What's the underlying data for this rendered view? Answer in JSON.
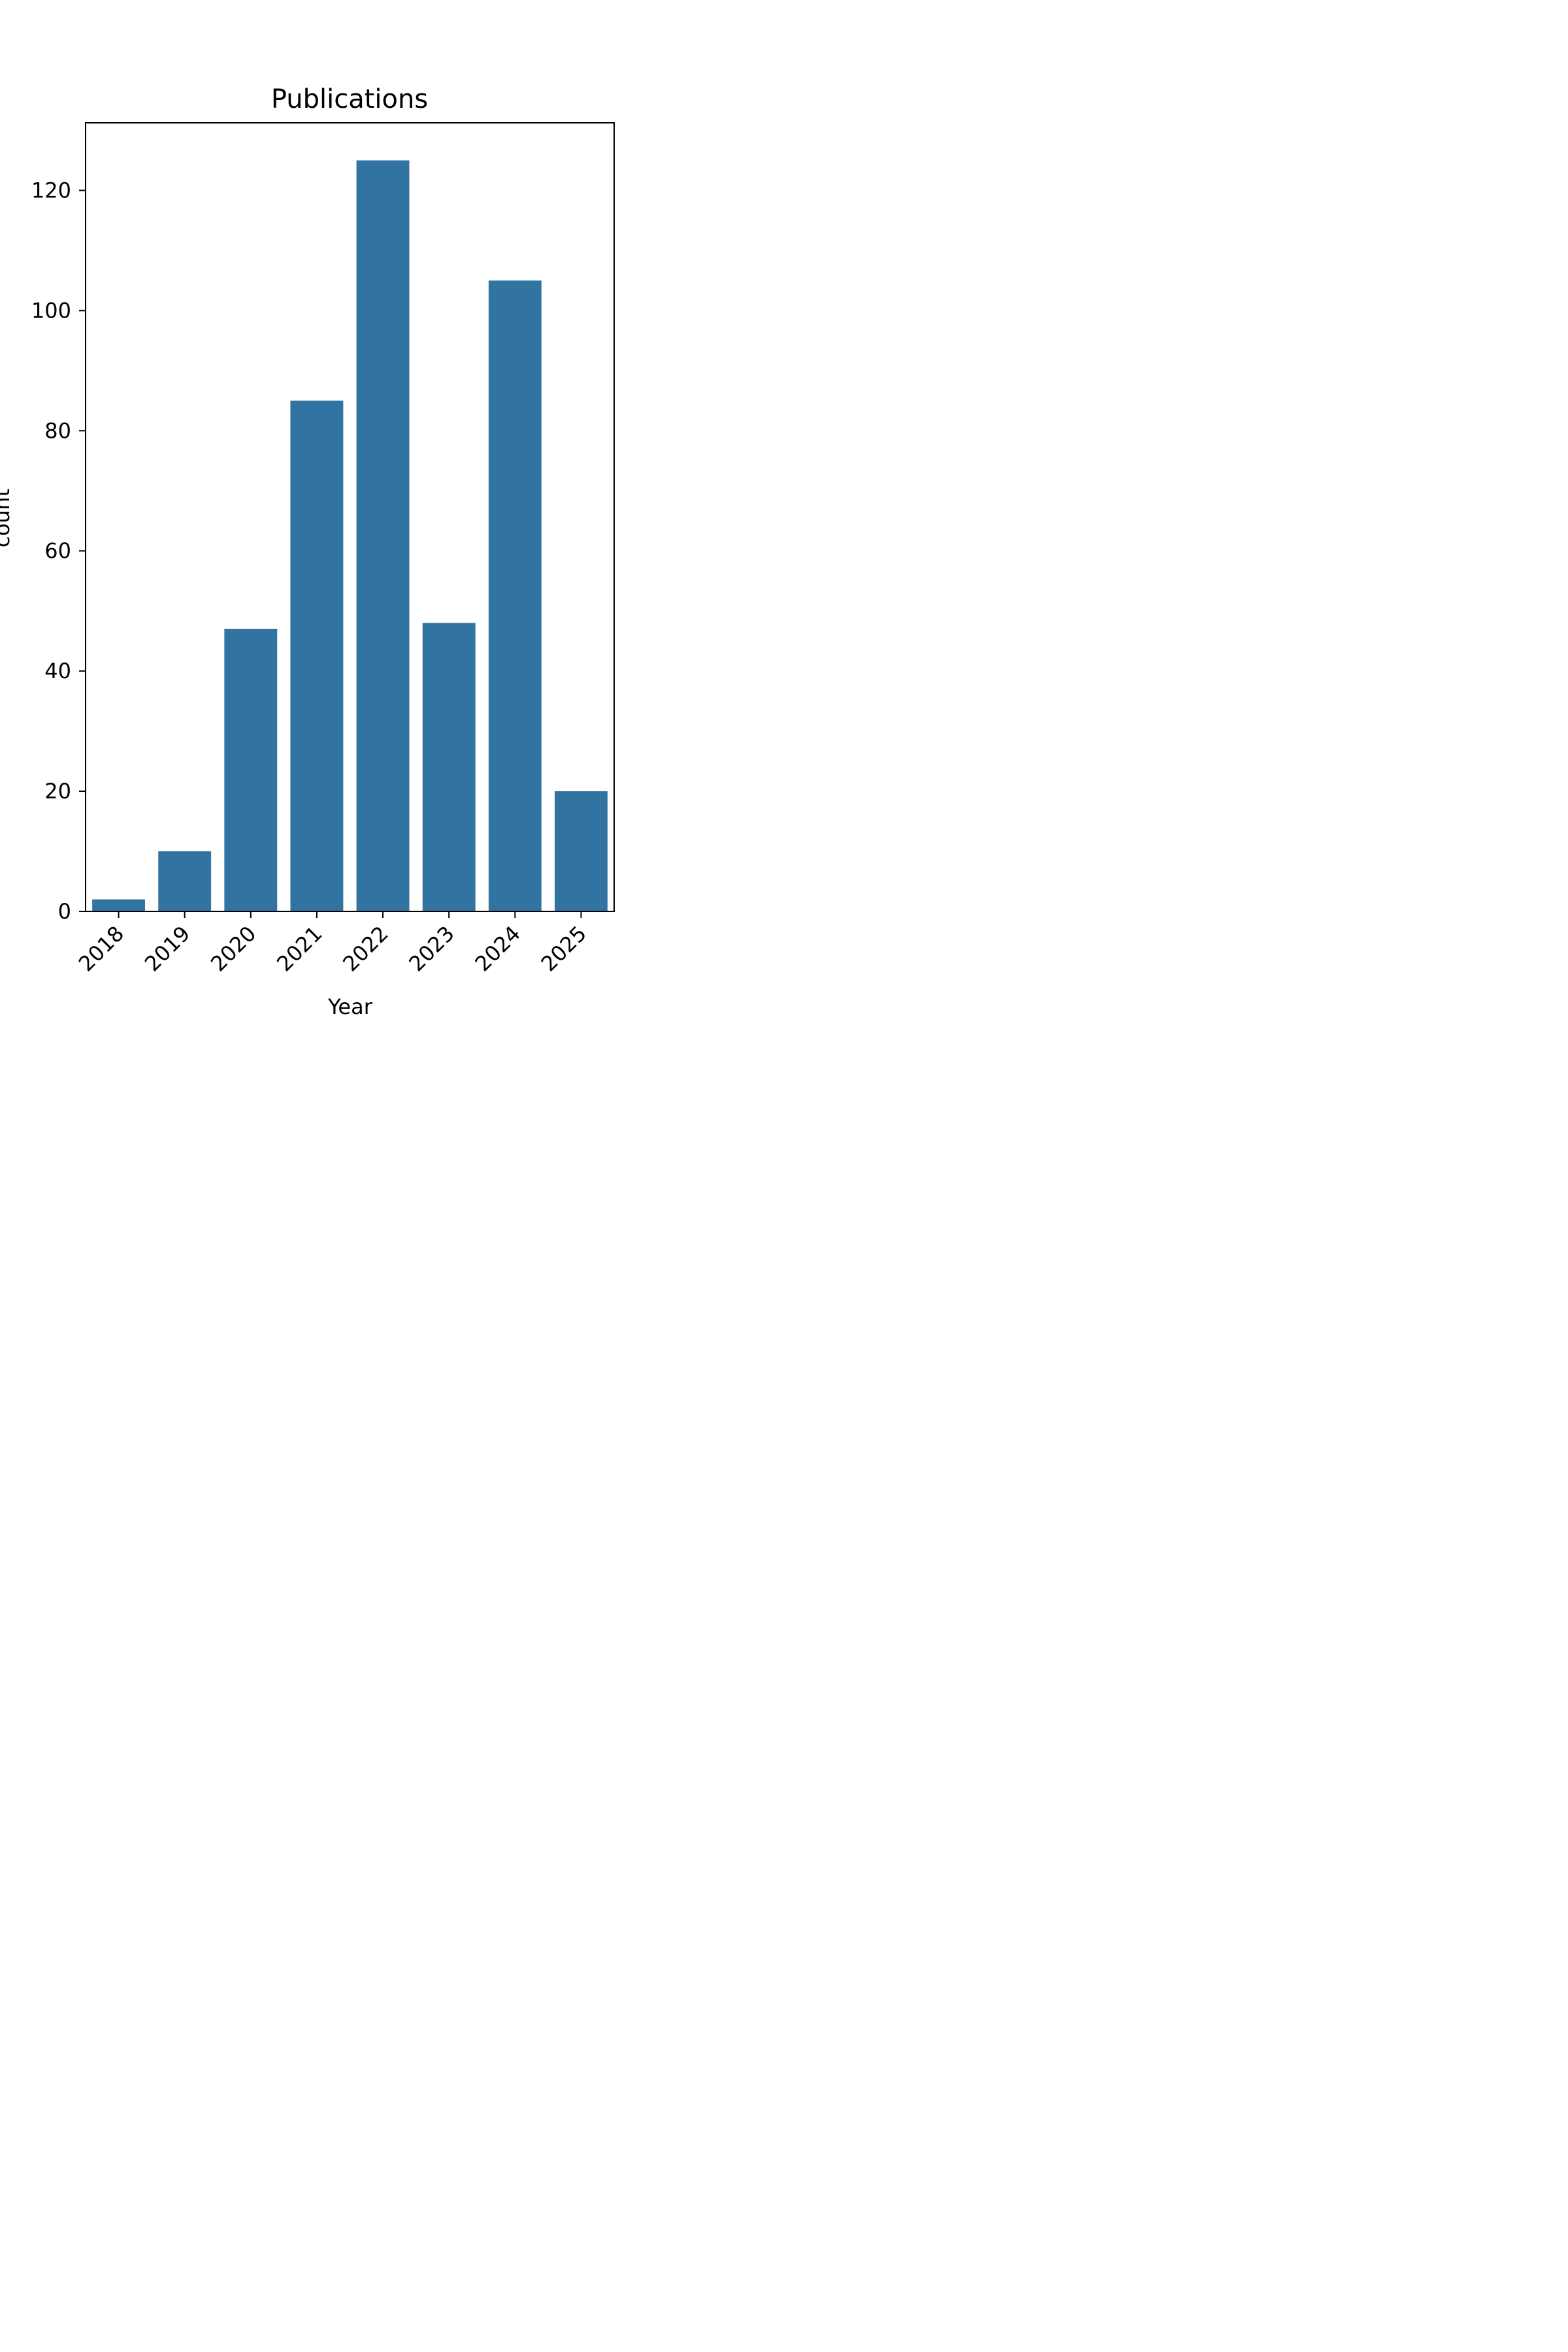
{
  "chart_data": {
    "type": "bar",
    "title": "Publications",
    "xlabel": "Year",
    "ylabel": "count",
    "categories": [
      "2018",
      "2019",
      "2020",
      "2021",
      "2022",
      "2023",
      "2024",
      "2025"
    ],
    "values": [
      2,
      10,
      47,
      85,
      125,
      48,
      105,
      20
    ],
    "ylim": [
      0,
      131.25
    ],
    "yticks": [
      0,
      20,
      40,
      60,
      80,
      100,
      120
    ],
    "grid": false,
    "bar_color": "#3274a1",
    "x_tick_rotation": "45°"
  }
}
